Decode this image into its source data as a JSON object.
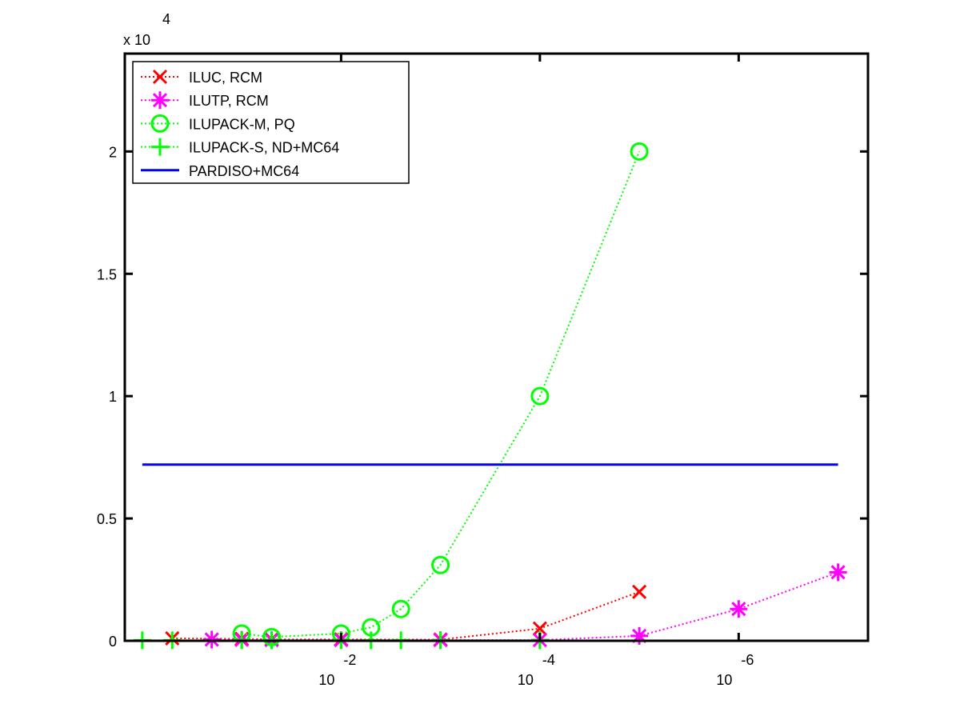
{
  "chart_data": {
    "type": "line",
    "title": "",
    "xlabel": "",
    "ylabel": "",
    "x_scale": "log-reversed",
    "xlim": [
      1.5,
      5e-08
    ],
    "ylim": [
      0,
      24000
    ],
    "y_multiplier_label": "x 10",
    "y_multiplier_exponent": "4",
    "x_ticks": [
      {
        "value": 0.01,
        "base": "10",
        "exp": "-2"
      },
      {
        "value": 0.0001,
        "base": "10",
        "exp": "-4"
      },
      {
        "value": 1e-06,
        "base": "10",
        "exp": "-6"
      }
    ],
    "y_ticks": [
      {
        "value": 0,
        "label": "0"
      },
      {
        "value": 5000,
        "label": "0.5"
      },
      {
        "value": 10000,
        "label": "1"
      },
      {
        "value": 15000,
        "label": "1.5"
      },
      {
        "value": 20000,
        "label": "2"
      }
    ],
    "grid": false,
    "legend_position": "top-left",
    "series": [
      {
        "name": "ILUC, RCM",
        "color": "#ff0000",
        "marker": "x",
        "line_style": "dotted",
        "points": [
          [
            0.5,
            100
          ],
          [
            0.1,
            80
          ],
          [
            0.05,
            60
          ],
          [
            0.01,
            60
          ],
          [
            0.001,
            50
          ],
          [
            0.0001,
            500
          ],
          [
            1e-05,
            2000
          ]
        ]
      },
      {
        "name": "ILUTP, RCM",
        "color": "#ff00ff",
        "marker": "asterisk",
        "line_style": "dotted",
        "points": [
          [
            0.2,
            50
          ],
          [
            0.1,
            40
          ],
          [
            0.05,
            30
          ],
          [
            0.01,
            30
          ],
          [
            0.001,
            30
          ],
          [
            0.0001,
            30
          ],
          [
            1e-05,
            200
          ],
          [
            1e-06,
            1300
          ],
          [
            1e-07,
            2800
          ]
        ]
      },
      {
        "name": "ILUPACK-M, PQ",
        "color": "#00ff00",
        "marker": "circle",
        "line_style": "dotted",
        "points": [
          [
            0.1,
            300
          ],
          [
            0.05,
            150
          ],
          [
            0.01,
            300
          ],
          [
            0.005,
            550
          ],
          [
            0.0025,
            1300
          ],
          [
            0.001,
            3100
          ],
          [
            0.0001,
            10000
          ],
          [
            1e-05,
            20000
          ]
        ]
      },
      {
        "name": "ILUPACK-S, ND+MC64",
        "color": "#00ff00",
        "marker": "plus",
        "line_style": "dotted",
        "points": [
          [
            1.0,
            20
          ],
          [
            0.5,
            20
          ],
          [
            0.1,
            20
          ],
          [
            0.05,
            20
          ],
          [
            0.01,
            20
          ],
          [
            0.005,
            20
          ],
          [
            0.0025,
            20
          ],
          [
            0.001,
            20
          ],
          [
            0.0001,
            20
          ]
        ]
      },
      {
        "name": "PARDISO+MC64",
        "color": "#0000ff",
        "marker": "none",
        "line_style": "solid",
        "points": [
          [
            1.0,
            7200
          ],
          [
            1e-07,
            7200
          ]
        ]
      }
    ]
  }
}
